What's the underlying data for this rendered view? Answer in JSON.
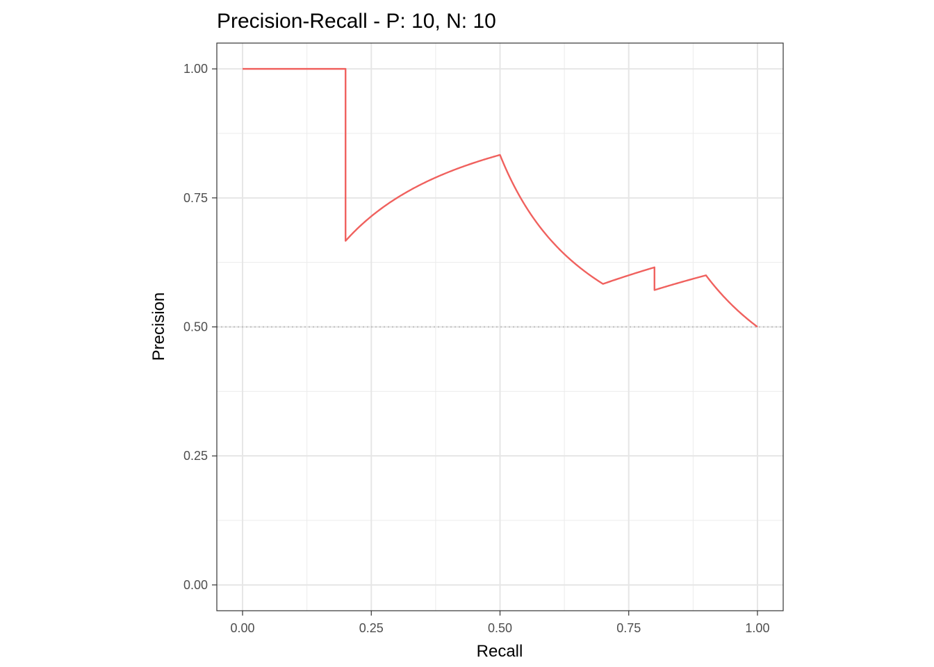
{
  "chart_data": {
    "type": "line",
    "title": "Precision-Recall - P: 10, N: 10",
    "xlabel": "Recall",
    "ylabel": "Precision",
    "xlim": [
      -0.05,
      1.05
    ],
    "ylim": [
      -0.05,
      1.05
    ],
    "x_ticks": [
      0,
      0.25,
      0.5,
      0.75,
      1
    ],
    "y_ticks": [
      0,
      0.25,
      0.5,
      0.75,
      1
    ],
    "x_tick_labels": [
      "0.00",
      "0.25",
      "0.50",
      "0.75",
      "1.00"
    ],
    "y_tick_labels": [
      "0.00",
      "0.25",
      "0.50",
      "0.75",
      "1.00"
    ],
    "grid": true,
    "baseline": {
      "y": 0.5,
      "style": "dotted",
      "color": "#bdbdbd"
    },
    "series": [
      {
        "color": "#f0615e",
        "x": [
          0.0,
          0.1,
          0.2,
          0.2,
          0.3,
          0.4,
          0.5,
          0.6,
          0.7,
          0.8,
          0.8,
          0.9,
          1.0
        ],
        "y": [
          1.0,
          1.0,
          1.0,
          0.6667,
          0.75,
          0.8,
          0.8333,
          0.6667,
          0.5833,
          0.6154,
          0.5714,
          0.6,
          0.5
        ],
        "interpolation": "precision-recall"
      }
    ]
  }
}
